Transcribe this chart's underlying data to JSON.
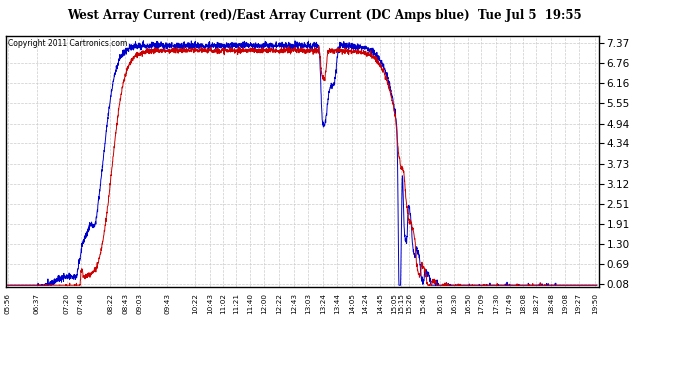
{
  "title": "West Array Current (red)/East Array Current (DC Amps blue)  Tue Jul 5  19:55",
  "copyright": "Copyright 2011 Cartronics.com",
  "yticks": [
    7.37,
    6.76,
    6.16,
    5.55,
    4.94,
    4.34,
    3.73,
    3.12,
    2.51,
    1.91,
    1.3,
    0.69,
    0.08
  ],
  "ymin": 0.0,
  "ymax": 7.6,
  "bg_color": "#ffffff",
  "grid_color": "#cccccc",
  "line_color_red": "#cc0000",
  "line_color_blue": "#0000cc",
  "start_hour": 5.933,
  "end_hour": 19.883,
  "x_tick_labels": [
    "05:56",
    "06:37",
    "07:20",
    "07:40",
    "08:22",
    "08:43",
    "09:03",
    "09:43",
    "10:22",
    "10:43",
    "11:02",
    "11:21",
    "11:40",
    "12:00",
    "12:22",
    "12:43",
    "13:03",
    "13:24",
    "13:44",
    "14:05",
    "14:24",
    "14:45",
    "15:05",
    "15:15",
    "15:26",
    "15:46",
    "16:10",
    "16:30",
    "16:50",
    "17:09",
    "17:30",
    "17:49",
    "18:08",
    "18:27",
    "18:48",
    "19:08",
    "19:27",
    "19:50"
  ]
}
